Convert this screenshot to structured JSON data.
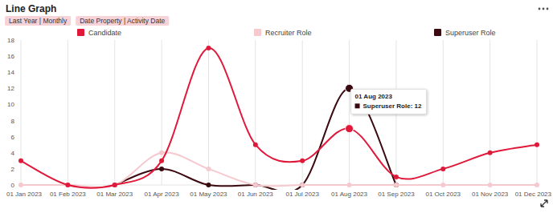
{
  "chart_data": {
    "type": "line",
    "title": "Line Graph",
    "filters": [
      "Last Year | Monthly",
      "Date Property | Activity Date"
    ],
    "x": [
      "01 Jan 2023",
      "01 Feb 2023",
      "01 Mar 2023",
      "01 Apr 2023",
      "01 May 2023",
      "01 Jun 2023",
      "01 Jul 2023",
      "01 Aug 2023",
      "01 Sep 2023",
      "01 Oct 2023",
      "01 Nov 2023",
      "01 Dec 2023"
    ],
    "series": [
      {
        "name": "Candidate",
        "color": "#e0193a",
        "marker": "circle",
        "values": [
          3,
          0,
          0,
          3,
          17,
          5,
          3,
          7,
          1,
          2,
          4,
          5
        ]
      },
      {
        "name": "Recruiter Role",
        "color": "#f6c9cf",
        "marker": "circle",
        "values": [
          0,
          0,
          0,
          4,
          2,
          0,
          0,
          0,
          0,
          0,
          0,
          0
        ]
      },
      {
        "name": "Superuser Role",
        "color": "#3b0a10",
        "marker": "circle",
        "values": [
          null,
          null,
          0,
          2,
          0,
          0,
          0,
          12,
          0,
          null,
          null,
          null
        ]
      }
    ],
    "ylim": [
      0,
      18
    ],
    "yticks": [
      0,
      2,
      4,
      6,
      8,
      10,
      12,
      14,
      16,
      18
    ],
    "grid": true,
    "legend": "top",
    "tooltip": {
      "x": "01 Aug 2023",
      "series": "Superuser Role",
      "text": "Superuser Role: 12"
    }
  }
}
